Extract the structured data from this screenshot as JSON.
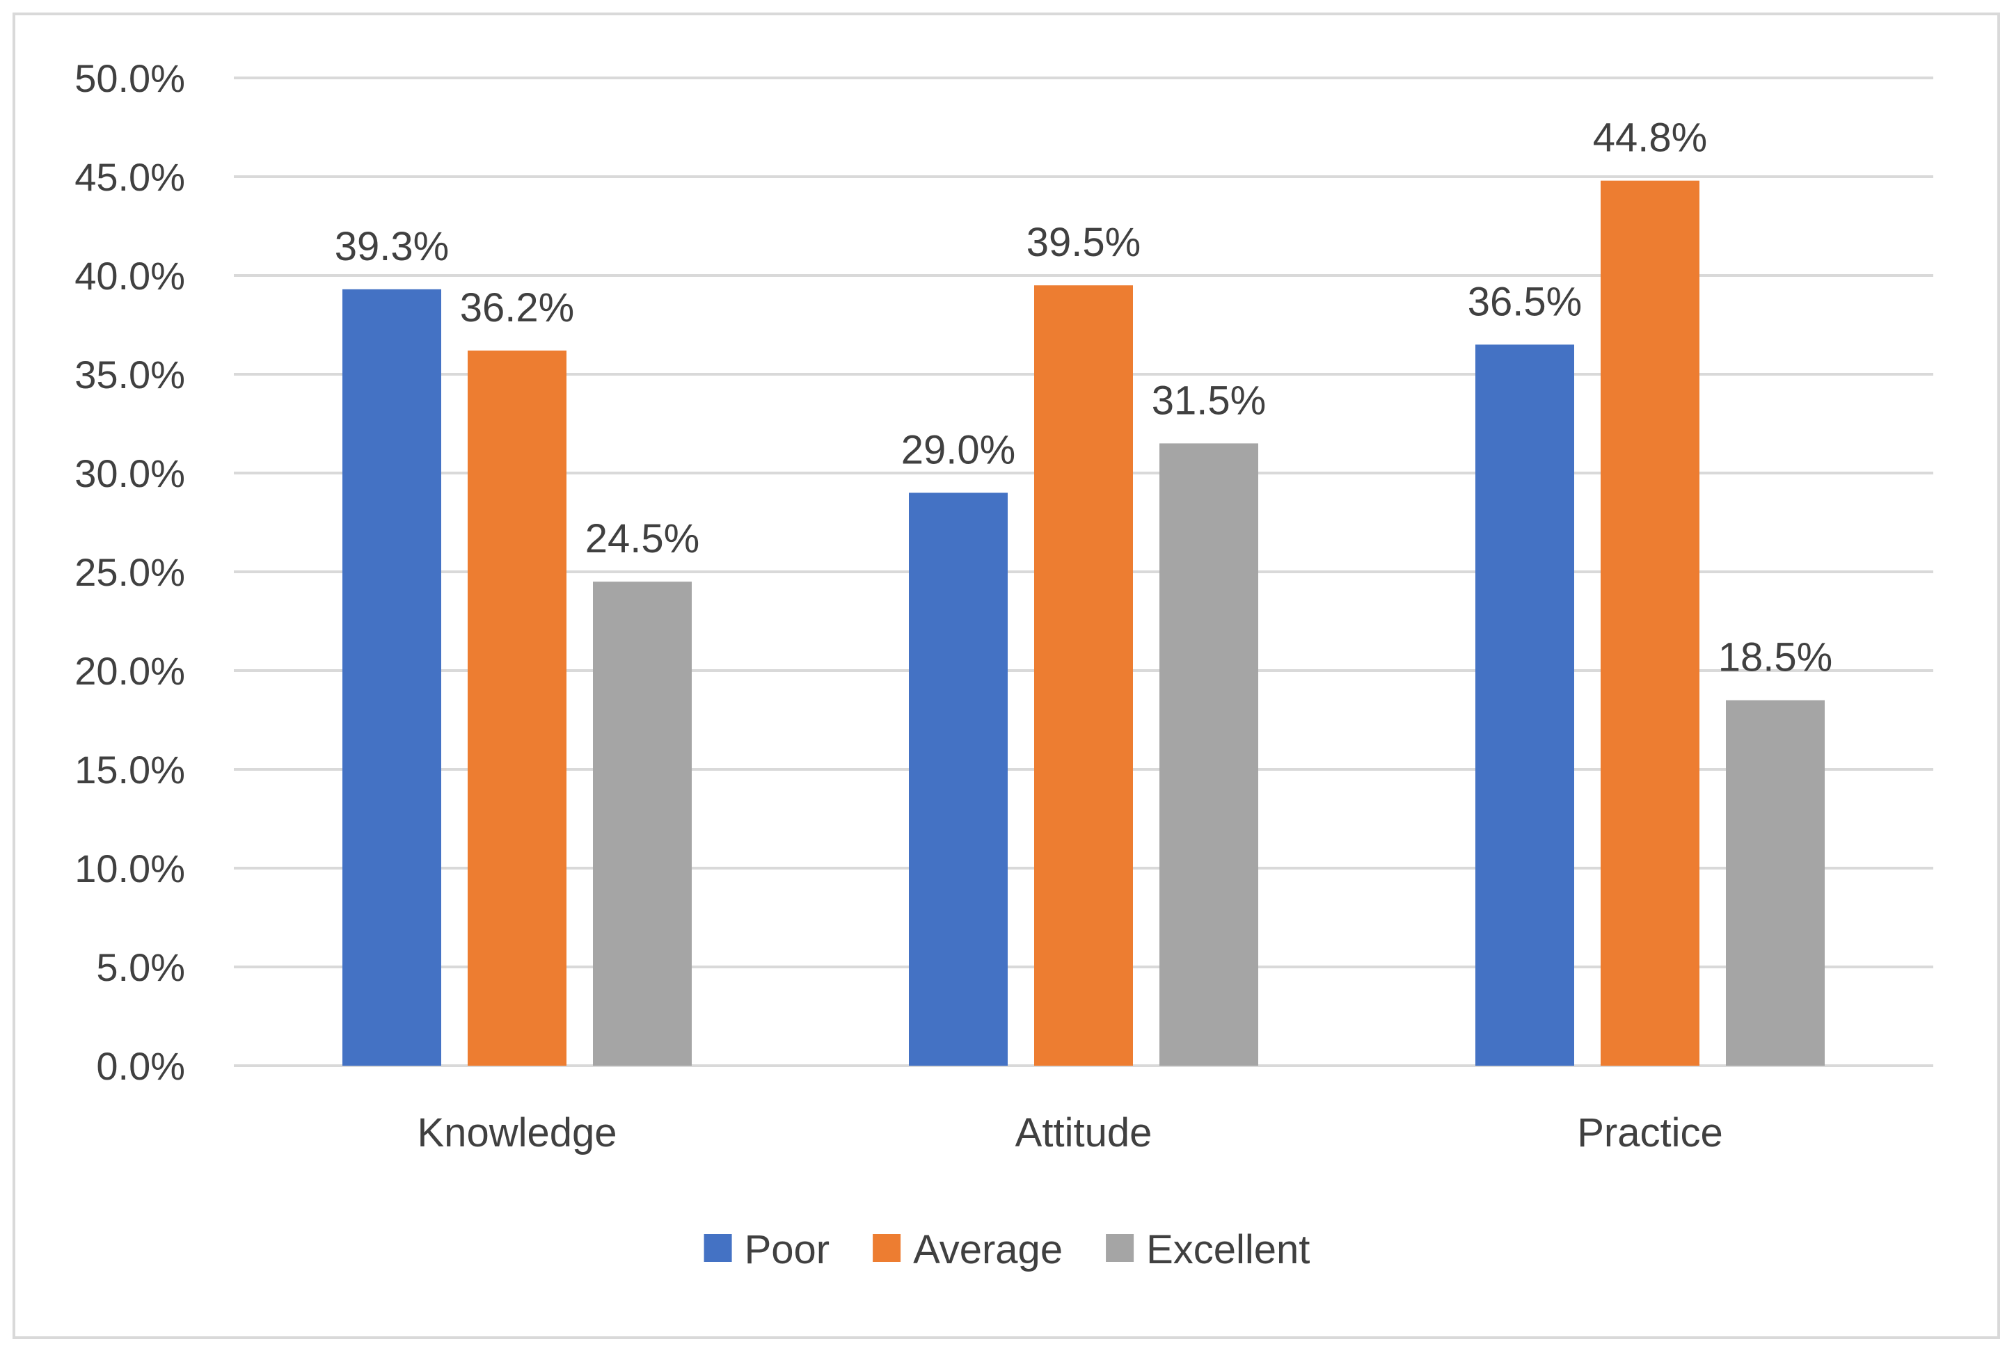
{
  "chart_data": {
    "type": "bar",
    "title": "",
    "xlabel": "",
    "ylabel": "",
    "ylim": [
      0,
      50
    ],
    "yticks": [
      0,
      5,
      10,
      15,
      20,
      25,
      30,
      35,
      40,
      45,
      50
    ],
    "ytick_labels": [
      "0.0%",
      "5.0%",
      "10.0%",
      "15.0%",
      "20.0%",
      "25.0%",
      "30.0%",
      "35.0%",
      "40.0%",
      "45.0%",
      "50.0%"
    ],
    "categories": [
      "Knowledge",
      "Attitude",
      "Practice"
    ],
    "series": [
      {
        "name": "Poor",
        "color": "#4472c4",
        "values": [
          39.3,
          29.0,
          36.5
        ],
        "labels": [
          "39.3%",
          "29.0%",
          "36.5%"
        ]
      },
      {
        "name": "Average",
        "color": "#ed7d31",
        "values": [
          36.2,
          39.5,
          44.8
        ],
        "labels": [
          "36.2%",
          "39.5%",
          "44.8%"
        ]
      },
      {
        "name": "Excellent",
        "color": "#a5a5a5",
        "values": [
          24.5,
          31.5,
          18.5
        ],
        "labels": [
          "24.5%",
          "31.5%",
          "18.5%"
        ]
      }
    ],
    "grid": true,
    "gridline_color": "#d9d9d9",
    "legend_position": "bottom"
  }
}
